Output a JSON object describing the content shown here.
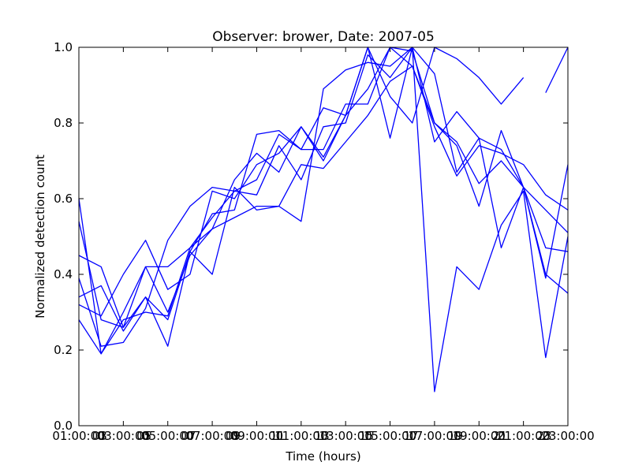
{
  "chart_data": {
    "type": "line",
    "title": "Observer: brower, Date: 2007-05",
    "xlabel": "Time (hours)",
    "ylabel": "Normalized detection count",
    "xlim": [
      1,
      23
    ],
    "ylim": [
      0,
      1
    ],
    "x_ticks": [
      1,
      3,
      5,
      7,
      9,
      11,
      13,
      15,
      17,
      19,
      21,
      23
    ],
    "x_tick_labels": [
      "01:00:00",
      "03:00:00",
      "05:00:00",
      "07:00:00",
      "09:00:00",
      "11:00:00",
      "13:00:00",
      "15:00:00",
      "17:00:00",
      "19:00:00",
      "21:00:00",
      "23:00:00"
    ],
    "x_tick_labels_overlap": [
      "03",
      "05",
      "07",
      "09",
      "11",
      "13",
      "15",
      "17",
      "19",
      "21",
      "23"
    ],
    "y_ticks": [
      0.0,
      0.2,
      0.4,
      0.6,
      0.8,
      1.0
    ],
    "y_tick_labels": [
      "0.0",
      "0.2",
      "0.4",
      "0.6",
      "0.8",
      "1.0"
    ],
    "grid": false,
    "color": "#0000ff",
    "x": [
      1,
      2,
      3,
      4,
      5,
      6,
      7,
      8,
      9,
      10,
      11,
      12,
      13,
      14,
      15,
      16,
      17,
      18,
      19,
      20,
      21,
      22,
      23
    ],
    "series": [
      {
        "values": [
          0.6,
          0.19,
          0.28,
          0.3,
          0.29,
          0.47,
          0.52,
          0.65,
          0.72,
          0.67,
          0.79,
          0.7,
          0.82,
          1.0,
          0.76,
          1.0,
          0.75,
          0.83,
          0.76,
          0.47,
          0.63,
          0.47,
          0.46
        ]
      },
      {
        "values": [
          0.54,
          0.28,
          0.26,
          0.42,
          0.42,
          0.47,
          0.55,
          0.62,
          0.61,
          0.74,
          0.65,
          0.79,
          0.8,
          0.98,
          0.92,
          1.0,
          0.93,
          0.67,
          0.76,
          0.73,
          0.63,
          0.57,
          0.51
        ]
      },
      {
        "values": [
          0.45,
          0.42,
          0.26,
          0.34,
          0.28,
          0.46,
          0.56,
          0.57,
          0.77,
          0.78,
          0.73,
          0.84,
          0.82,
          1.0,
          0.87,
          0.8,
          1.0,
          0.97,
          0.92,
          0.85,
          0.92,
          null,
          null
        ]
      },
      {
        "values": [
          0.39,
          0.21,
          0.22,
          0.31,
          0.49,
          0.58,
          0.63,
          0.62,
          0.65,
          0.77,
          0.73,
          0.73,
          0.85,
          0.85,
          1.0,
          0.99,
          0.8,
          0.74,
          0.58,
          0.78,
          0.63,
          0.39,
          0.69
        ]
      },
      {
        "values": [
          0.34,
          0.37,
          0.25,
          0.34,
          0.21,
          0.46,
          0.4,
          0.63,
          0.57,
          0.58,
          0.54,
          0.89,
          0.94,
          0.96,
          0.95,
          1.0,
          0.09,
          0.42,
          0.36,
          0.53,
          0.62,
          0.18,
          0.5
        ]
      },
      {
        "values": [
          0.32,
          0.29,
          0.4,
          0.49,
          0.36,
          0.4,
          0.62,
          0.6,
          0.69,
          0.72,
          0.79,
          0.71,
          0.82,
          0.89,
          1.0,
          0.95,
          0.79,
          0.66,
          0.74,
          0.72,
          0.69,
          0.61,
          0.57
        ]
      },
      {
        "values": [
          0.28,
          0.19,
          0.3,
          0.42,
          0.3,
          0.45,
          0.52,
          0.55,
          0.58,
          0.58,
          0.69,
          0.68,
          0.75,
          0.82,
          0.91,
          0.95,
          0.8,
          0.75,
          0.64,
          0.7,
          0.63,
          0.4,
          0.35
        ]
      },
      {
        "values": [
          null,
          null,
          null,
          null,
          null,
          null,
          null,
          null,
          null,
          null,
          null,
          null,
          null,
          null,
          null,
          null,
          null,
          null,
          null,
          null,
          null,
          0.88,
          1.0
        ]
      }
    ]
  }
}
